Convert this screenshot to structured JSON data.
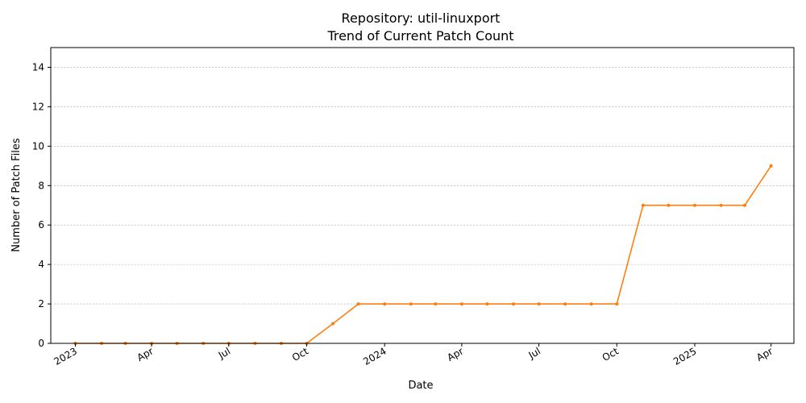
{
  "chart_data": {
    "type": "line",
    "title": "Repository: util-linuxport",
    "subtitle": "Trend of Current Patch Count",
    "xlabel": "Date",
    "ylabel": "Number of Patch Files",
    "ylim": [
      0,
      15
    ],
    "yticks": [
      0,
      2,
      4,
      6,
      8,
      10,
      12,
      14
    ],
    "xlim": [
      "2022-12-03",
      "2025-04-28"
    ],
    "xticks": [
      {
        "label": "2023",
        "date": "2023-01-01"
      },
      {
        "label": "Apr",
        "date": "2023-04-01"
      },
      {
        "label": "Jul",
        "date": "2023-07-01"
      },
      {
        "label": "Oct",
        "date": "2023-10-01"
      },
      {
        "label": "2024",
        "date": "2024-01-01"
      },
      {
        "label": "Apr",
        "date": "2024-04-01"
      },
      {
        "label": "Jul",
        "date": "2024-07-01"
      },
      {
        "label": "Oct",
        "date": "2024-10-01"
      },
      {
        "label": "2025",
        "date": "2025-01-01"
      },
      {
        "label": "Apr",
        "date": "2025-04-01"
      }
    ],
    "grid": "y",
    "series": [
      {
        "color": "#ff7f0e",
        "x": [
          "2023-01-01",
          "2023-02-01",
          "2023-03-01",
          "2023-04-01",
          "2023-05-01",
          "2023-06-01",
          "2023-07-01",
          "2023-08-01",
          "2023-09-01",
          "2023-10-01",
          "2023-11-01",
          "2023-12-01",
          "2024-01-01",
          "2024-02-01",
          "2024-03-01",
          "2024-04-01",
          "2024-05-01",
          "2024-06-01",
          "2024-07-01",
          "2024-08-01",
          "2024-09-01",
          "2024-10-01",
          "2024-11-01",
          "2024-12-01",
          "2025-01-01",
          "2025-02-01",
          "2025-03-01",
          "2025-04-01"
        ],
        "y": [
          0,
          0,
          0,
          0,
          0,
          0,
          0,
          0,
          0,
          0,
          1,
          2,
          2,
          2,
          2,
          2,
          2,
          2,
          2,
          2,
          2,
          2,
          7,
          7,
          7,
          7,
          7,
          9
        ]
      }
    ]
  }
}
